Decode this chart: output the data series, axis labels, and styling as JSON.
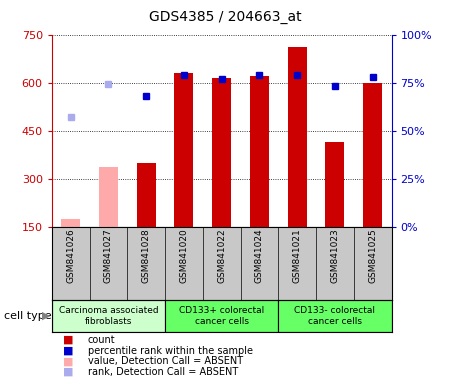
{
  "title": "GDS4385 / 204663_at",
  "samples": [
    "GSM841026",
    "GSM841027",
    "GSM841028",
    "GSM841020",
    "GSM841022",
    "GSM841024",
    "GSM841021",
    "GSM841023",
    "GSM841025"
  ],
  "count_values": [
    null,
    null,
    350,
    630,
    615,
    620,
    710,
    415,
    600
  ],
  "count_absent": [
    175,
    335,
    null,
    null,
    null,
    null,
    null,
    null,
    null
  ],
  "rank_values": [
    null,
    null,
    68,
    79,
    77,
    79,
    79,
    73,
    78
  ],
  "rank_absent": [
    57,
    74,
    null,
    null,
    null,
    null,
    null,
    null,
    null
  ],
  "ylim_left": [
    150,
    750
  ],
  "ylim_right": [
    0,
    100
  ],
  "yticks_left": [
    150,
    300,
    450,
    600,
    750
  ],
  "ytick_labels_left": [
    "150",
    "300",
    "450",
    "600",
    "750"
  ],
  "yticks_right": [
    0,
    25,
    50,
    75,
    100
  ],
  "ytick_labels_right": [
    "0%",
    "25%",
    "50%",
    "75%",
    "100%"
  ],
  "groups": [
    {
      "label": "Carcinoma associated\nfibroblasts",
      "indices": [
        0,
        1,
        2
      ],
      "color": "#ccffcc"
    },
    {
      "label": "CD133+ colorectal\ncancer cells",
      "indices": [
        3,
        4,
        5
      ],
      "color": "#66ff66"
    },
    {
      "label": "CD133- colorectal\ncancer cells",
      "indices": [
        6,
        7,
        8
      ],
      "color": "#66ff66"
    }
  ],
  "bar_width": 0.5,
  "count_color": "#cc0000",
  "count_absent_color": "#ffaaaa",
  "rank_color": "#0000cc",
  "rank_absent_color": "#aaaaee",
  "sample_bg_color": "#c8c8c8",
  "plot_bg": "#ffffff",
  "cell_type_label": "cell type",
  "legend_items": [
    {
      "label": "count",
      "color": "#cc0000"
    },
    {
      "label": "percentile rank within the sample",
      "color": "#0000cc"
    },
    {
      "label": "value, Detection Call = ABSENT",
      "color": "#ffaaaa"
    },
    {
      "label": "rank, Detection Call = ABSENT",
      "color": "#aaaaee"
    }
  ]
}
